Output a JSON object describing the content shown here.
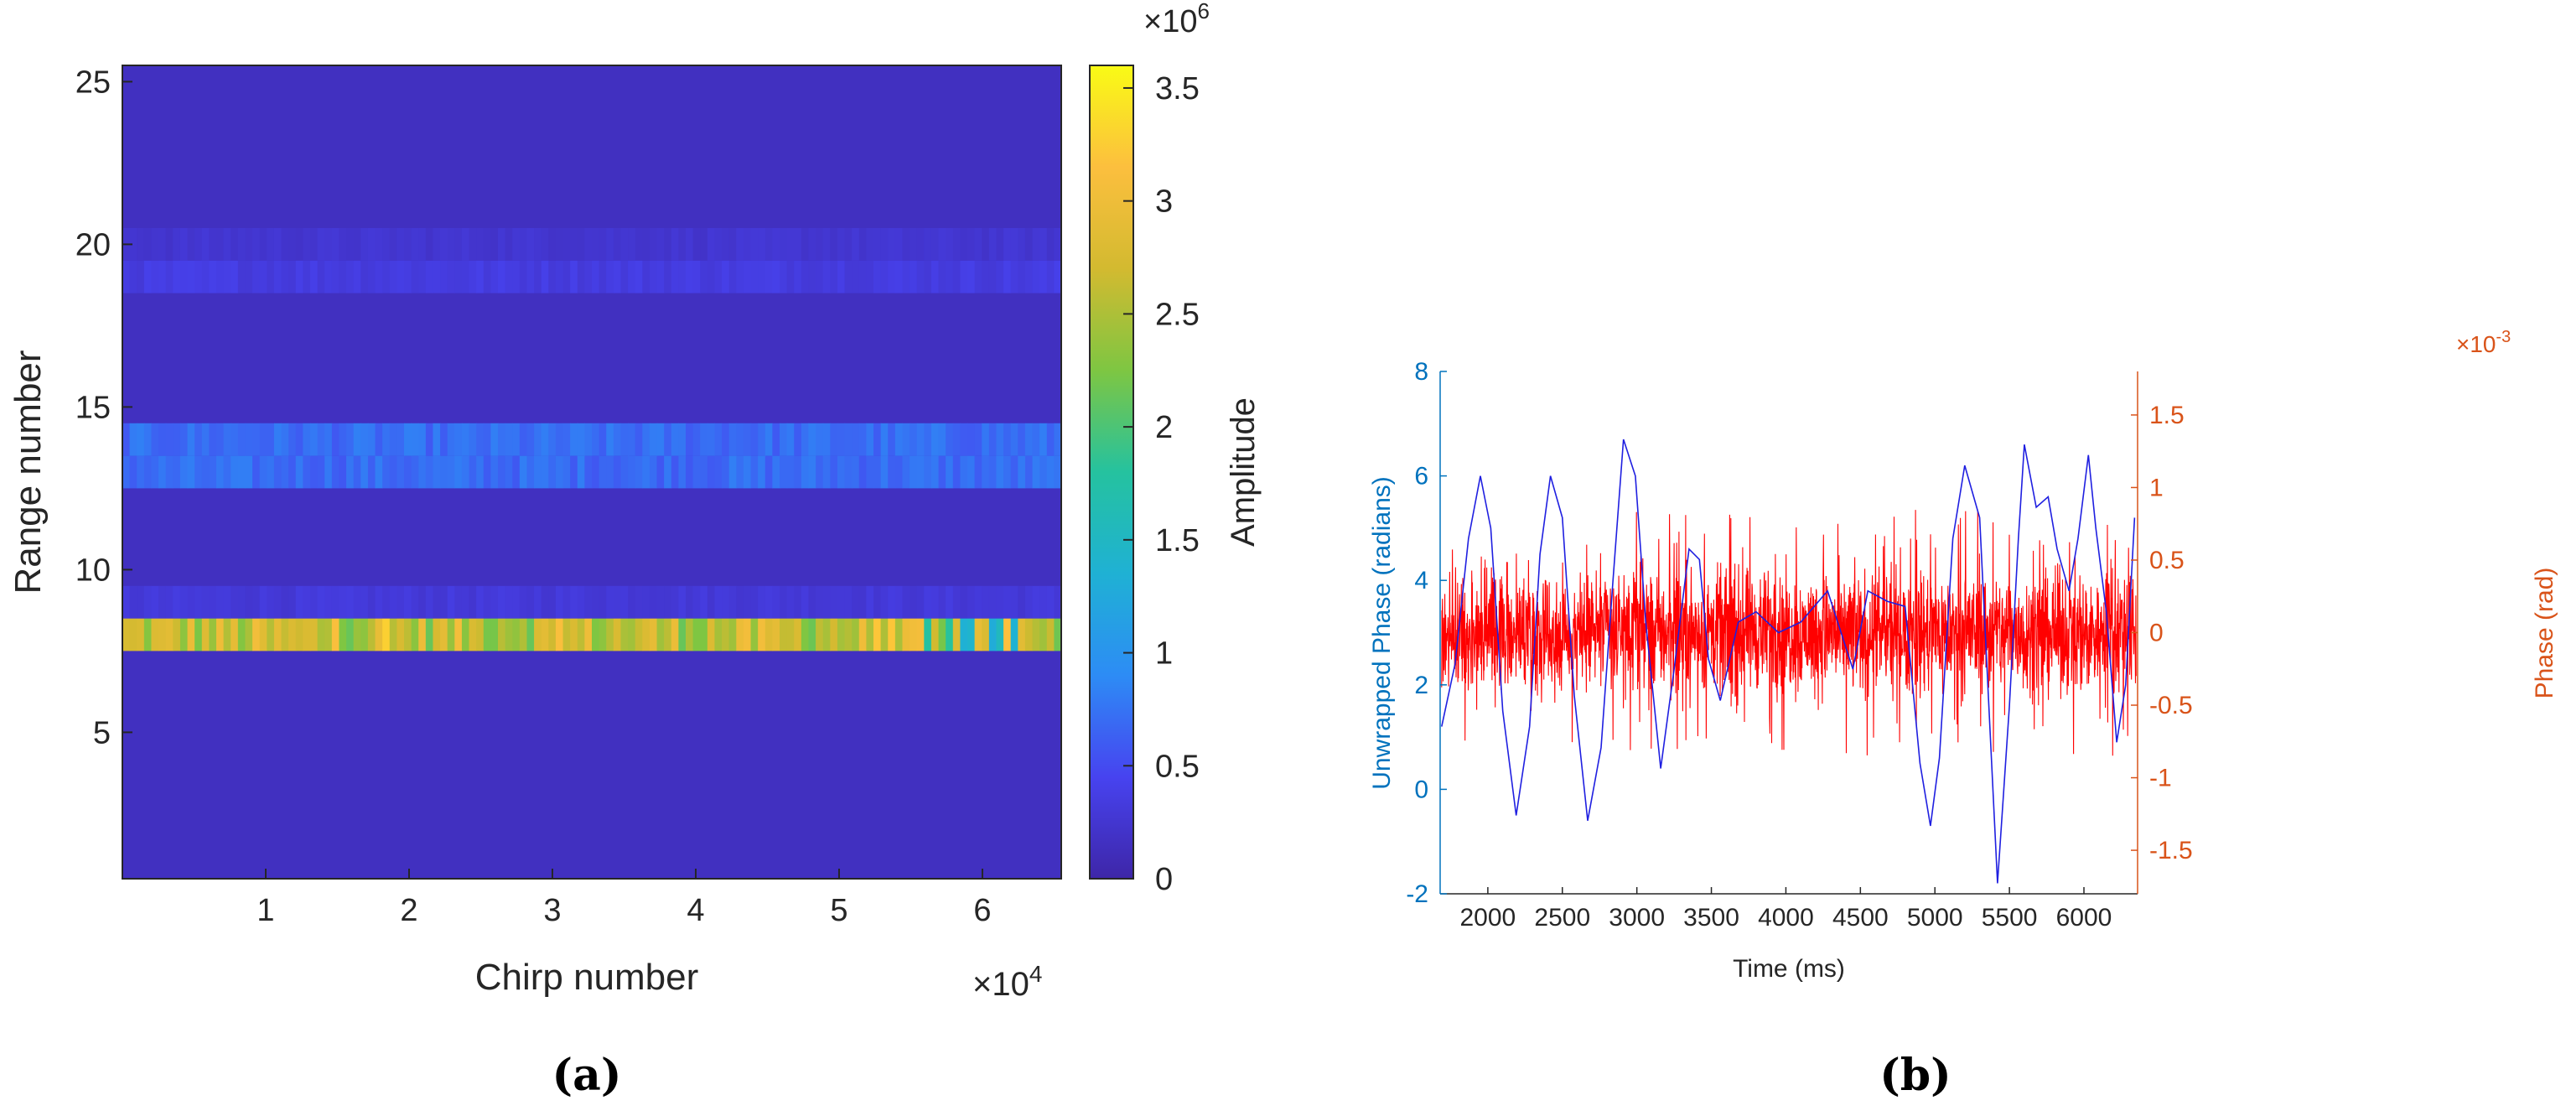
{
  "captions": {
    "a": "(a)",
    "b": "(b)"
  },
  "chart_data": [
    {
      "type": "heatmap",
      "title": "",
      "xlabel": "Chirp number",
      "ylabel": "Range number",
      "x_exponent": "×10",
      "x_exponent_power": "4",
      "xlim": [
        0,
        6.55
      ],
      "ylim": [
        0.5,
        25.5
      ],
      "xticks": [
        "1",
        "2",
        "3",
        "4",
        "5",
        "6"
      ],
      "yticks": [
        "5",
        "10",
        "15",
        "20",
        "25"
      ],
      "colorbar": {
        "label": "Amplitude",
        "exponent": "×10",
        "exponent_power": "6",
        "range": [
          0,
          3.6
        ],
        "ticks": [
          "0",
          "0.5",
          "1",
          "1.5",
          "2",
          "2.5",
          "3",
          "3.5"
        ],
        "colormap": [
          "#3e26a8",
          "#4743f0",
          "#2d8cf5",
          "#1fb1d4",
          "#25c29f",
          "#7ec642",
          "#d3ba30",
          "#fcbf3e",
          "#f9fb15"
        ]
      },
      "range_bins": [
        {
          "range": 8,
          "amplitude": 2.6
        },
        {
          "range": 9,
          "amplitude": 0.3
        },
        {
          "range": 13,
          "amplitude": 0.7
        },
        {
          "range": 14,
          "amplitude": 0.7
        },
        {
          "range": 19,
          "amplitude": 0.35
        },
        {
          "range": 20,
          "amplitude": 0.25
        }
      ],
      "background_amplitude": 0.15
    },
    {
      "type": "line",
      "title": "",
      "xlabel": "Time (ms)",
      "ylabel_left": "Unwrapped Phase (radians)",
      "ylabel_right": "Phase (rad)",
      "right_exponent": "×10",
      "right_exponent_power": "-3",
      "xlim": [
        1680,
        6360
      ],
      "ylim_left": [
        -2,
        8
      ],
      "ylim_right": [
        -1.8,
        1.8
      ],
      "xticks": [
        "2000",
        "2500",
        "3000",
        "3500",
        "4000",
        "4500",
        "5000",
        "5500",
        "6000"
      ],
      "yticks_left": [
        "-2",
        "0",
        "2",
        "4",
        "6",
        "8"
      ],
      "yticks_right": [
        "-1.5",
        "-1",
        "-0.5",
        "0",
        "0.5",
        "1",
        "1.5"
      ],
      "colors": {
        "left_axis": "#0072bd",
        "right_axis": "#d95319",
        "unwrapped": "#1f1fe0",
        "phase": "#ff0000"
      },
      "series": [
        {
          "name": "Unwrapped Phase",
          "axis": "left",
          "x": [
            1690,
            1780,
            1870,
            1950,
            2020,
            2100,
            2190,
            2280,
            2350,
            2420,
            2500,
            2580,
            2670,
            2760,
            2840,
            2910,
            2990,
            3060,
            3160,
            3250,
            3350,
            3420,
            3480,
            3560,
            3680,
            3800,
            3950,
            4100,
            4280,
            4450,
            4550,
            4680,
            4800,
            4900,
            4970,
            5030,
            5120,
            5200,
            5300,
            5420,
            5500,
            5560,
            5600,
            5680,
            5760,
            5820,
            5900,
            5960,
            6030,
            6080,
            6150,
            6220,
            6280,
            6340
          ],
          "y": [
            1.2,
            2.4,
            4.8,
            6.0,
            5.0,
            1.5,
            -0.5,
            1.2,
            4.5,
            6.0,
            5.2,
            1.8,
            -0.6,
            0.8,
            4.0,
            6.7,
            6.0,
            3.2,
            0.4,
            2.3,
            4.6,
            4.4,
            2.5,
            1.7,
            3.2,
            3.4,
            3.0,
            3.2,
            3.8,
            2.3,
            3.8,
            3.6,
            3.5,
            0.5,
            -0.7,
            0.6,
            4.8,
            6.2,
            5.2,
            -1.8,
            1.6,
            4.8,
            6.6,
            5.4,
            5.6,
            4.6,
            3.8,
            4.8,
            6.4,
            5.0,
            3.4,
            0.9,
            2.0,
            5.2
          ]
        },
        {
          "name": "Phase",
          "axis": "right",
          "x_range": [
            1690,
            6350
          ],
          "y_envelope": [
            -0.6,
            0.6
          ],
          "y_mean": 0.0
        }
      ]
    }
  ]
}
